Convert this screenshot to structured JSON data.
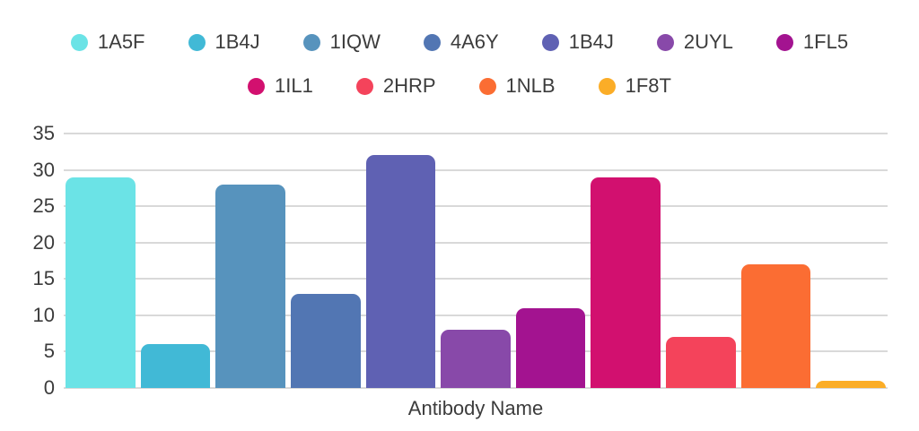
{
  "chart_data": {
    "type": "bar",
    "title": "",
    "xlabel": "Antibody Name",
    "ylabel": "",
    "categories": [
      "1A5F",
      "1B4J",
      "1IQW",
      "4A6Y",
      "1B4J",
      "2UYL",
      "1FL5",
      "1IL1",
      "2HRP",
      "1NLB",
      "1F8T"
    ],
    "values": [
      29,
      6,
      28,
      13,
      32,
      8,
      11,
      29,
      7,
      17,
      1
    ],
    "colors": [
      "#6BE3E6",
      "#41B9D6",
      "#5793BD",
      "#5276B3",
      "#5F61B3",
      "#8849A9",
      "#A31390",
      "#D2106F",
      "#F4435B",
      "#FB6D33",
      "#FBAD27"
    ],
    "ylim": [
      0,
      35
    ],
    "yticks": [
      0,
      5,
      10,
      15,
      20,
      25,
      30,
      35
    ],
    "grid": true,
    "legend_position": "top"
  },
  "legend": {
    "rows": [
      [
        {
          "label": "1A5F",
          "color": "#6BE3E6"
        },
        {
          "label": "1B4J",
          "color": "#41B9D6"
        },
        {
          "label": "1IQW",
          "color": "#5793BD"
        },
        {
          "label": "4A6Y",
          "color": "#5276B3"
        },
        {
          "label": "1B4J",
          "color": "#5F61B3"
        },
        {
          "label": "2UYL",
          "color": "#8849A9"
        },
        {
          "label": "1FL5",
          "color": "#A31390"
        }
      ],
      [
        {
          "label": "1IL1",
          "color": "#D2106F"
        },
        {
          "label": "2HRP",
          "color": "#F4435B"
        },
        {
          "label": "1NLB",
          "color": "#FB6D33"
        },
        {
          "label": "1F8T",
          "color": "#FBAD27"
        }
      ]
    ]
  },
  "styles": {
    "grid_color": "#d9d9d9",
    "text_color": "#3c3c3c",
    "background": "#ffffff"
  }
}
